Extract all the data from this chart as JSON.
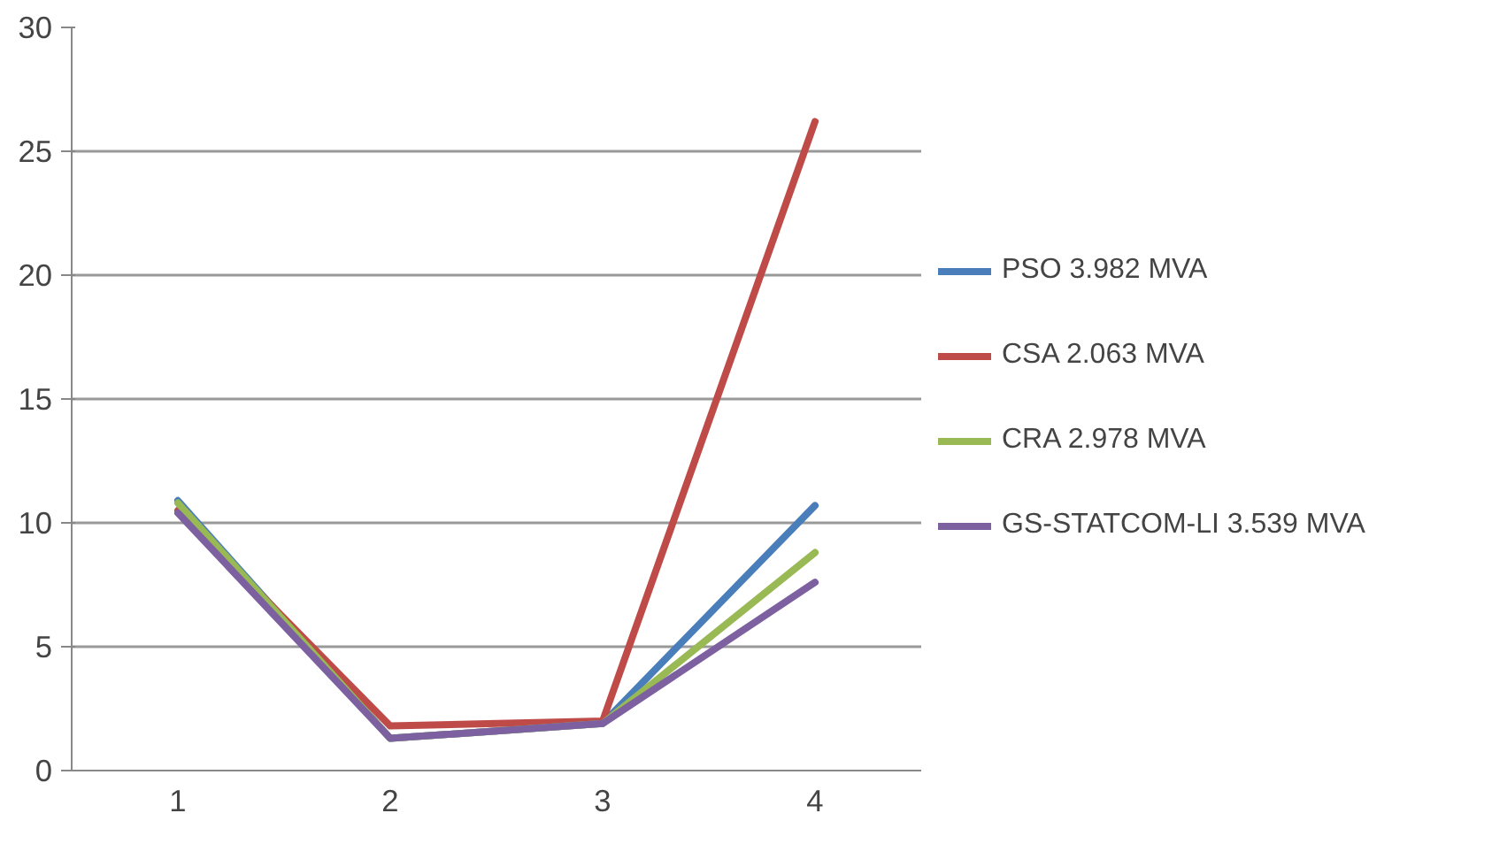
{
  "chart_data": {
    "type": "line",
    "categories": [
      "1",
      "2",
      "3",
      "4"
    ],
    "ylim": [
      0,
      30
    ],
    "yticks": [
      0,
      5,
      10,
      15,
      20,
      25,
      30
    ],
    "grid": "y",
    "legend": "right",
    "marker": "none",
    "line_style": "solid",
    "series": [
      {
        "name": "PSO 3.982 MVA",
        "color": "#4a7ebb",
        "values": [
          10.9,
          1.3,
          1.9,
          10.7
        ]
      },
      {
        "name": "CSA 2.063 MVA",
        "color": "#be4b48",
        "values": [
          10.5,
          1.8,
          2.0,
          26.2
        ]
      },
      {
        "name": "CRA 2.978 MVA",
        "color": "#98b954",
        "values": [
          10.8,
          1.3,
          1.9,
          8.8
        ]
      },
      {
        "name": "GS-STATCOM-LI 3.539 MVA",
        "color": "#7d60a0",
        "values": [
          10.4,
          1.3,
          1.9,
          7.6
        ]
      }
    ]
  }
}
